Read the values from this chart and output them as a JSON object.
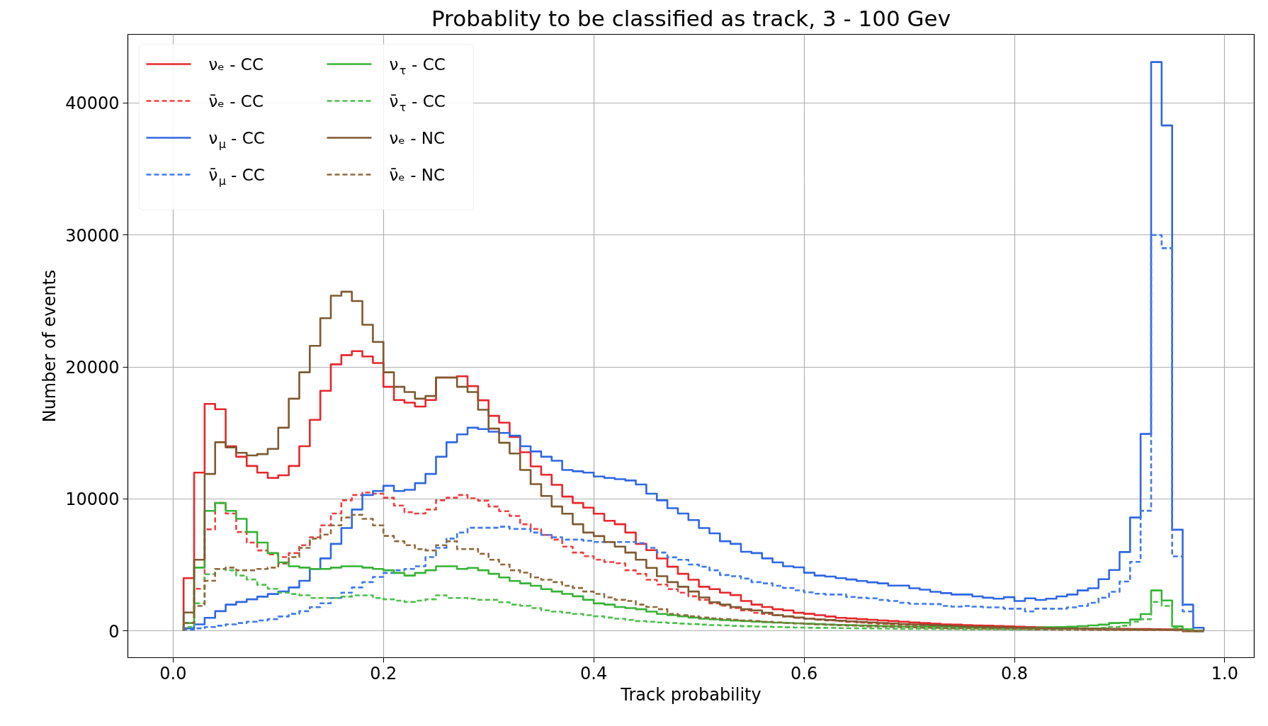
{
  "chart_data": {
    "type": "histogram",
    "title": "Probablity to be classified as track, 3 - 100 Gev",
    "xlabel": "Track probability",
    "ylabel": "Number of events",
    "xlim": [
      -0.043,
      1.028
    ],
    "ylim": [
      -2020,
      45200
    ],
    "xticks": [
      {
        "value": 0,
        "label": "0.0"
      },
      {
        "value": 0.2,
        "label": "0.2"
      },
      {
        "value": 0.4,
        "label": "0.4"
      },
      {
        "value": 0.6,
        "label": "0.6"
      },
      {
        "value": 0.8,
        "label": "0.8"
      },
      {
        "value": 1,
        "label": "1.0"
      }
    ],
    "yticks": [
      0,
      10000,
      20000,
      30000,
      40000
    ],
    "grid": true,
    "legend": "top left",
    "bins": [
      0.01,
      0.02,
      0.03,
      0.04,
      0.05,
      0.06,
      0.07,
      0.08,
      0.09,
      0.1,
      0.11,
      0.12,
      0.13,
      0.14,
      0.15,
      0.16,
      0.17,
      0.18,
      0.19,
      0.2,
      0.21,
      0.22,
      0.23,
      0.24,
      0.25,
      0.26,
      0.27,
      0.28,
      0.29,
      0.3,
      0.31,
      0.32,
      0.33,
      0.34,
      0.35,
      0.36,
      0.37,
      0.38,
      0.39,
      0.4,
      0.41,
      0.42,
      0.43,
      0.44,
      0.45,
      0.46,
      0.47,
      0.48,
      0.49,
      0.5,
      0.51,
      0.52,
      0.53,
      0.54,
      0.55,
      0.56,
      0.57,
      0.58,
      0.59,
      0.6,
      0.61,
      0.62,
      0.63,
      0.64,
      0.65,
      0.66,
      0.67,
      0.68,
      0.69,
      0.7,
      0.71,
      0.72,
      0.73,
      0.74,
      0.75,
      0.76,
      0.77,
      0.78,
      0.79,
      0.8,
      0.81,
      0.82,
      0.83,
      0.84,
      0.85,
      0.86,
      0.87,
      0.88,
      0.89,
      0.9,
      0.91,
      0.92,
      0.93,
      0.94,
      0.95,
      0.96,
      0.97,
      0.98
    ],
    "series": [
      {
        "name": "νₑ - CC",
        "color": "#e8262b",
        "line_style": "solid",
        "values": [
          4000,
          12000,
          17200,
          16800,
          14000,
          13200,
          12500,
          12000,
          11600,
          11800,
          12500,
          14000,
          16000,
          18200,
          20200,
          20900,
          21200,
          20800,
          20300,
          18500,
          17500,
          17300,
          17000,
          17500,
          19200,
          19200,
          19300,
          18550,
          17480,
          16300,
          15780,
          14700,
          13540,
          12470,
          11840,
          11070,
          10180,
          9700,
          9340,
          8890,
          8350,
          8090,
          7460,
          6600,
          6120,
          5490,
          4870,
          4330,
          3880,
          3350,
          3170,
          2900,
          2720,
          2270,
          2000,
          1820,
          1650,
          1560,
          1380,
          1300,
          1200,
          1100,
          1000,
          950,
          900,
          850,
          800,
          750,
          700,
          650,
          600,
          550,
          500,
          480,
          450,
          420,
          400,
          380,
          350,
          330,
          300,
          280,
          260,
          240,
          220,
          200,
          190,
          180,
          170,
          160,
          150,
          150,
          140,
          130,
          120,
          0,
          0
        ]
      },
      {
        "name": "ν̄ₑ - CC",
        "color": "#ee4040",
        "line_style": "dashed",
        "values": [
          600,
          3200,
          7700,
          9700,
          8900,
          7500,
          6700,
          6100,
          5800,
          5600,
          5900,
          6500,
          7100,
          8000,
          8900,
          9900,
          10300,
          10500,
          10400,
          10100,
          9500,
          9000,
          8900,
          9200,
          9900,
          10100,
          10300,
          10050,
          9870,
          9430,
          9070,
          8710,
          8090,
          7730,
          7280,
          6920,
          6390,
          5940,
          5670,
          5400,
          5220,
          5130,
          4600,
          4330,
          3880,
          3520,
          3170,
          2900,
          2630,
          2360,
          2090,
          1910,
          1740,
          1560,
          1380,
          1300,
          1200,
          1100,
          1000,
          930,
          860,
          800,
          740,
          690,
          640,
          590,
          550,
          510,
          470,
          440,
          410,
          380,
          350,
          320,
          300,
          280,
          260,
          240,
          220,
          200,
          190,
          180,
          170,
          160,
          150,
          140,
          130,
          120,
          110,
          100,
          100,
          90,
          90,
          80,
          80,
          0,
          0
        ]
      },
      {
        "name": "ν$_{μ}$ - CC",
        "color": "#2f67e3",
        "line_style": "solid",
        "values": [
          200,
          500,
          1000,
          1500,
          2000,
          2200,
          2400,
          2600,
          2800,
          3000,
          3300,
          3800,
          4700,
          5500,
          6600,
          7800,
          9200,
          10300,
          10600,
          11000,
          10600,
          10700,
          11200,
          11900,
          13200,
          14300,
          14900,
          15400,
          15300,
          15100,
          15000,
          14800,
          14000,
          13600,
          13200,
          12900,
          12200,
          12100,
          12000,
          11700,
          11600,
          11500,
          11400,
          11100,
          10400,
          9900,
          9300,
          8900,
          8400,
          7800,
          7400,
          6800,
          6600,
          6000,
          5900,
          5500,
          5200,
          4900,
          4820,
          4410,
          4200,
          4120,
          4000,
          3900,
          3790,
          3690,
          3610,
          3440,
          3440,
          3240,
          3130,
          2970,
          2870,
          2760,
          2760,
          2620,
          2520,
          2450,
          2560,
          2270,
          2470,
          2350,
          2450,
          2620,
          2760,
          3070,
          3240,
          3920,
          4620,
          5980,
          8600,
          14930,
          43100,
          38300,
          7670,
          2000,
          250
        ]
      },
      {
        "name": "ν̄$_{μ}$ - CC",
        "color": "#4079ea",
        "line_style": "dashed",
        "values": [
          100,
          200,
          300,
          400,
          500,
          600,
          700,
          800,
          900,
          1100,
          1300,
          1500,
          1800,
          2100,
          2500,
          2900,
          3300,
          3700,
          4100,
          4400,
          4600,
          4700,
          4900,
          5600,
          6300,
          7000,
          7460,
          7820,
          7820,
          7820,
          7900,
          7730,
          7730,
          7460,
          7280,
          7100,
          6920,
          6920,
          6830,
          6740,
          6740,
          6740,
          6740,
          6650,
          6300,
          5940,
          5580,
          5400,
          5040,
          4870,
          4600,
          4240,
          4150,
          3970,
          3700,
          3610,
          3430,
          3260,
          3080,
          2930,
          2820,
          2760,
          2760,
          2580,
          2520,
          2470,
          2350,
          2270,
          2140,
          2060,
          2060,
          2040,
          1900,
          1840,
          1900,
          1840,
          1790,
          1790,
          1690,
          1690,
          1480,
          1690,
          1690,
          1690,
          1790,
          1900,
          2140,
          2520,
          2970,
          3750,
          5240,
          9110,
          30000,
          29000,
          5650,
          1480,
          0
        ]
      },
      {
        "name": "ν$_{τ}$ - CC",
        "color": "#36b336",
        "line_style": "solid",
        "values": [
          600,
          4800,
          9100,
          9700,
          9100,
          8500,
          7500,
          6700,
          5900,
          5200,
          4900,
          4800,
          4700,
          4700,
          4800,
          4900,
          4900,
          4800,
          4700,
          4600,
          4400,
          4200,
          4400,
          4600,
          4900,
          4900,
          4700,
          4780,
          4600,
          4330,
          4060,
          3790,
          3610,
          3430,
          3170,
          2990,
          2810,
          2630,
          2360,
          2090,
          2000,
          1820,
          1740,
          1650,
          1470,
          1290,
          1200,
          1110,
          1020,
          930,
          880,
          830,
          790,
          750,
          710,
          670,
          640,
          610,
          580,
          550,
          520,
          490,
          460,
          440,
          420,
          400,
          380,
          360,
          340,
          330,
          320,
          310,
          300,
          290,
          280,
          270,
          260,
          250,
          250,
          250,
          250,
          260,
          280,
          300,
          330,
          370,
          420,
          480,
          600,
          620,
          870,
          1280,
          3070,
          2310,
          350,
          140,
          0
        ]
      },
      {
        "name": "ν̄$_{τ}$ - CC",
        "color": "#4cc04c",
        "line_style": "dashed",
        "values": [
          300,
          2100,
          4300,
          4700,
          4600,
          4200,
          3900,
          3500,
          3200,
          2900,
          2800,
          2700,
          2500,
          2500,
          2500,
          2600,
          2700,
          2700,
          2500,
          2400,
          2300,
          2200,
          2300,
          2400,
          2700,
          2500,
          2500,
          2450,
          2360,
          2360,
          2180,
          2000,
          1910,
          1740,
          1560,
          1470,
          1380,
          1290,
          1200,
          1110,
          1020,
          930,
          840,
          750,
          700,
          650,
          600,
          560,
          520,
          480,
          450,
          420,
          390,
          360,
          340,
          320,
          300,
          280,
          260,
          250,
          240,
          230,
          220,
          210,
          200,
          190,
          180,
          170,
          160,
          160,
          150,
          150,
          140,
          140,
          130,
          130,
          130,
          130,
          130,
          130,
          130,
          140,
          150,
          160,
          170,
          190,
          210,
          240,
          300,
          400,
          700,
          900,
          2200,
          1900,
          200,
          100,
          0
        ]
      },
      {
        "name": "νₑ - NC",
        "color": "#7e5930",
        "line_style": "solid",
        "values": [
          1400,
          5400,
          11900,
          14300,
          13900,
          13500,
          13300,
          13400,
          13800,
          15400,
          17600,
          19600,
          21600,
          23700,
          25400,
          25700,
          25000,
          23200,
          21900,
          19600,
          18500,
          18100,
          17600,
          17800,
          19200,
          19200,
          18500,
          18100,
          16760,
          15330,
          14260,
          13450,
          12200,
          11130,
          10230,
          9430,
          8890,
          8090,
          7460,
          7190,
          6740,
          6390,
          5940,
          5400,
          4780,
          4150,
          3700,
          3350,
          2990,
          2540,
          2180,
          2000,
          1820,
          1650,
          1560,
          1380,
          1200,
          1110,
          1020,
          930,
          880,
          830,
          780,
          730,
          690,
          650,
          610,
          570,
          530,
          500,
          470,
          440,
          410,
          380,
          350,
          330,
          310,
          290,
          270,
          250,
          230,
          210,
          200,
          190,
          180,
          170,
          160,
          150,
          140,
          130,
          120,
          110,
          110,
          100,
          100,
          0,
          0
        ]
      },
      {
        "name": "ν̄ₑ - NC",
        "color": "#8f6a3c",
        "line_style": "dashed",
        "values": [
          600,
          1900,
          3800,
          4700,
          4800,
          4600,
          4600,
          4700,
          4800,
          5100,
          5600,
          6300,
          7000,
          7300,
          8000,
          8600,
          8800,
          8500,
          8000,
          7200,
          6800,
          6500,
          6200,
          6100,
          6500,
          6800,
          6200,
          6210,
          5850,
          5400,
          5040,
          4600,
          4420,
          4060,
          3880,
          3700,
          3430,
          3260,
          2990,
          2810,
          2540,
          2360,
          2270,
          2000,
          1820,
          1650,
          1290,
          1200,
          1110,
          1020,
          960,
          900,
          850,
          800,
          750,
          700,
          650,
          610,
          570,
          530,
          500,
          470,
          440,
          410,
          380,
          350,
          330,
          310,
          290,
          270,
          250,
          230,
          210,
          200,
          190,
          180,
          170,
          160,
          150,
          140,
          130,
          120,
          110,
          100,
          100,
          90,
          90,
          80,
          80,
          70,
          70,
          60,
          60,
          60,
          50,
          0,
          0
        ]
      }
    ]
  }
}
